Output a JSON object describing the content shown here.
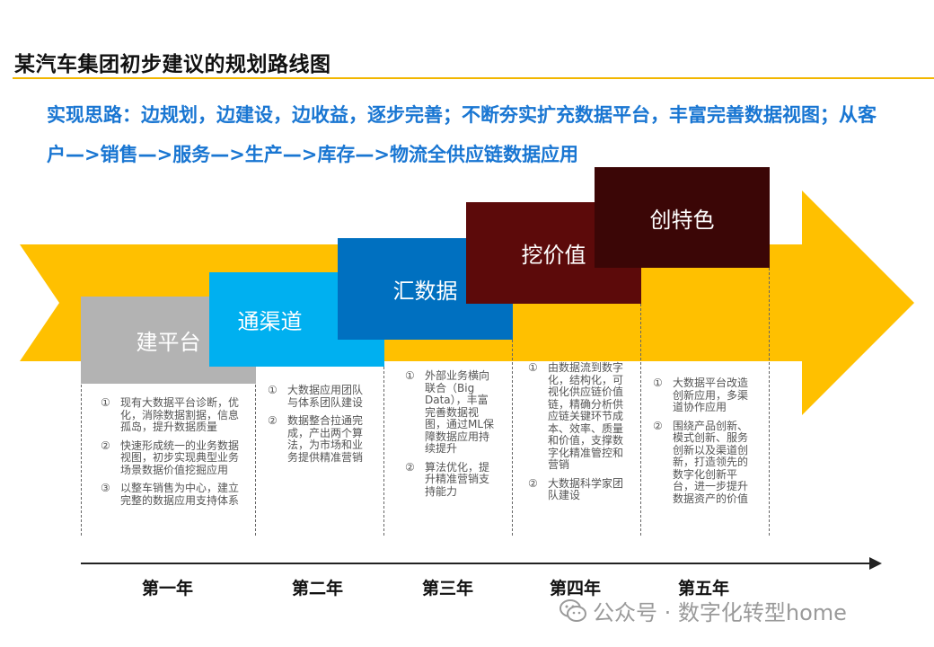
{
  "title": "某汽车集团初步建议的规划路线图",
  "subtitle": "实现思路：边规划，边建设，边收益，逐步完善；不断夯实扩充数据平台，丰富完善数据视图；从客户—>销售—>服务—>生产—>库存—>物流全供应链数据应用",
  "colors": {
    "arrow": "#ffc000",
    "accent_line": "#f2b600",
    "subtitle": "#1976d2"
  },
  "steps": [
    {
      "label": "建平台",
      "color": "#b3b3b3"
    },
    {
      "label": "通渠道",
      "color": "#00b0f0"
    },
    {
      "label": "汇数据",
      "color": "#0070c0"
    },
    {
      "label": "挖价值",
      "color": "#5c0a0a"
    },
    {
      "label": "创特色",
      "color": "#3b0606"
    }
  ],
  "years": [
    "第一年",
    "第二年",
    "第三年",
    "第四年",
    "第五年"
  ],
  "descriptions": [
    [
      {
        "num": "①",
        "text": "现有大数据平台诊断，优化，消除数据割据，信息孤岛，提升数据质量"
      },
      {
        "num": "②",
        "text": "快速形成统一的业务数据视图，初步实现典型业务场景数据价值挖掘应用"
      },
      {
        "num": "③",
        "text": "以整车销售为中心，建立完整的数据应用支持体系"
      }
    ],
    [
      {
        "num": "①",
        "text": "大数据应用团队与体系团队建设"
      },
      {
        "num": "②",
        "text": "数据整合拉通完成，产出两个算法，为市场和业务提供精准营销"
      }
    ],
    [
      {
        "num": "①",
        "text": "外部业务横向联合（Big Data），丰富完善数据视图，通过ML保障数据应用持续提升"
      },
      {
        "num": "②",
        "text": "算法优化，提升精准营销支持能力"
      }
    ],
    [
      {
        "num": "①",
        "text": "由数据流到数字化，结构化，可视化供应链价值链，精确分析供应链关键环节成本、效率、质量和价值，支撑数字化精准管控和营销"
      },
      {
        "num": "②",
        "text": "大数据科学家团队建设"
      }
    ],
    [
      {
        "num": "①",
        "text": "大数据平台改造创新应用，多渠道协作应用"
      },
      {
        "num": "②",
        "text": "围绕产品创新、模式创新、服务创新以及渠道创新，打造领先的数字化创新平台，进一步提升数据资产的价值"
      }
    ]
  ],
  "watermark": {
    "text": "公众号 · 数字化转型home",
    "icon": "wechat-icon"
  }
}
